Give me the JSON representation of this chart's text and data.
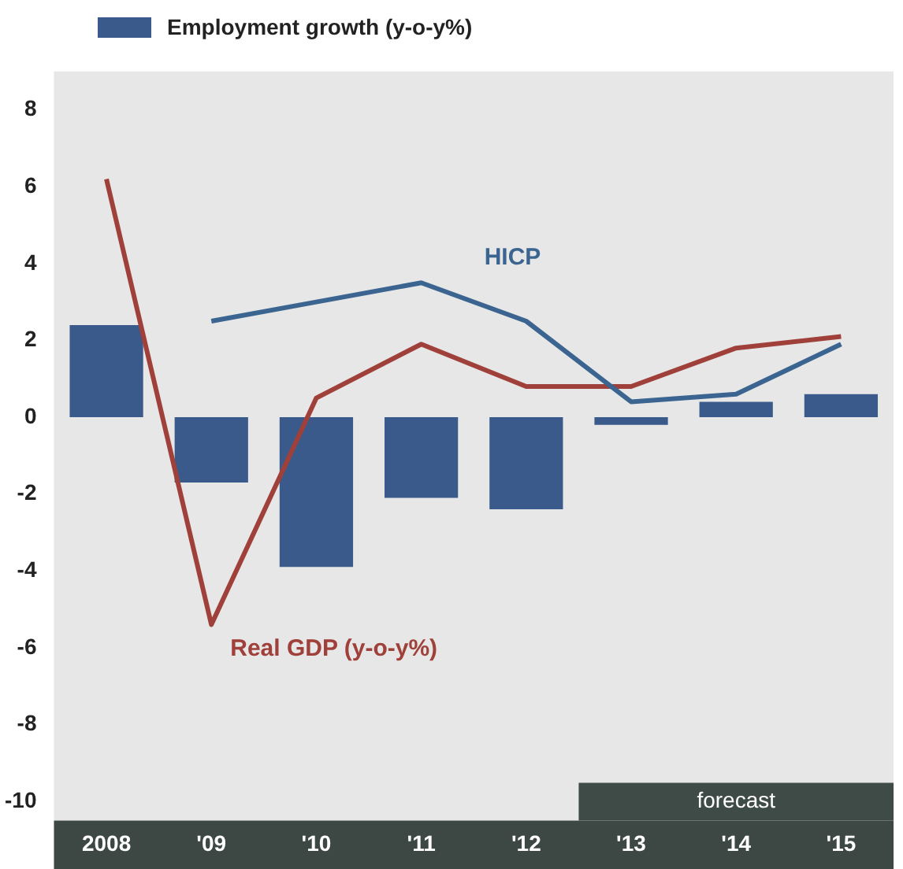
{
  "chart_data": {
    "type": "bar",
    "categories": [
      "2008",
      "'09",
      "'10",
      "'11",
      "'12",
      "'13",
      "'14",
      "'15"
    ],
    "series": [
      {
        "name": "Employment growth (y-o-y%)",
        "color": "#3a5a8c",
        "values": [
          2.4,
          -1.7,
          -3.9,
          -2.1,
          -2.4,
          -0.2,
          0.4,
          0.6
        ]
      },
      {
        "name": "HICP",
        "type": "line",
        "color": "#3b6590",
        "values": [
          null,
          2.5,
          3.0,
          3.5,
          2.5,
          0.4,
          0.6,
          1.9
        ]
      },
      {
        "name": "Real GDP (y-o-y%)",
        "type": "line",
        "color": "#a0403a",
        "values": [
          6.2,
          -5.4,
          0.5,
          1.9,
          0.8,
          0.8,
          1.8,
          2.1
        ]
      }
    ],
    "ylim": [
      -10.5,
      9
    ],
    "yticks": [
      8,
      6,
      4,
      2,
      0,
      -2,
      -4,
      -6,
      -8,
      -10
    ],
    "grid": false,
    "legend": "top left",
    "marker": "none",
    "line_style": "solid",
    "bands": [
      {
        "axis": "x",
        "from": "'13",
        "to": "'15",
        "label": "forecast",
        "color": "#3f4b46"
      }
    ]
  }
}
